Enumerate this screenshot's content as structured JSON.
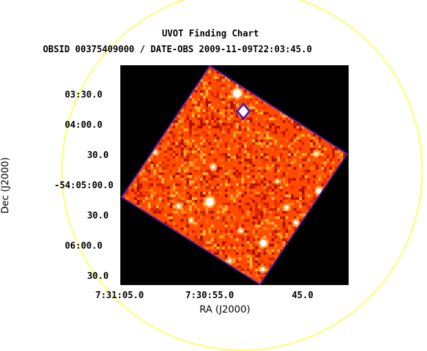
{
  "title": "UVOT Finding Chart",
  "subtitle": "OBSID 00375409000 / DATE-OBS 2009-11-09T22:03:45.0",
  "axes": {
    "x_label": "RA (J2000)",
    "y_label": "Dec (J2000)",
    "x_ticks": [
      "7:31:05.0",
      "7:30:55.0",
      "45.0"
    ],
    "y_ticks": [
      "03:30.0",
      "04:00.0",
      "30.0",
      "-54:05:00.0",
      "30.0",
      "06:00.0",
      "30.0"
    ]
  },
  "colors": {
    "field_background": "#000000",
    "overlay_circle": "#ffff00",
    "image_base": "#ff4a00",
    "image_border": "#5a1aa8",
    "star": "#ffffff",
    "text": "#000000"
  }
}
